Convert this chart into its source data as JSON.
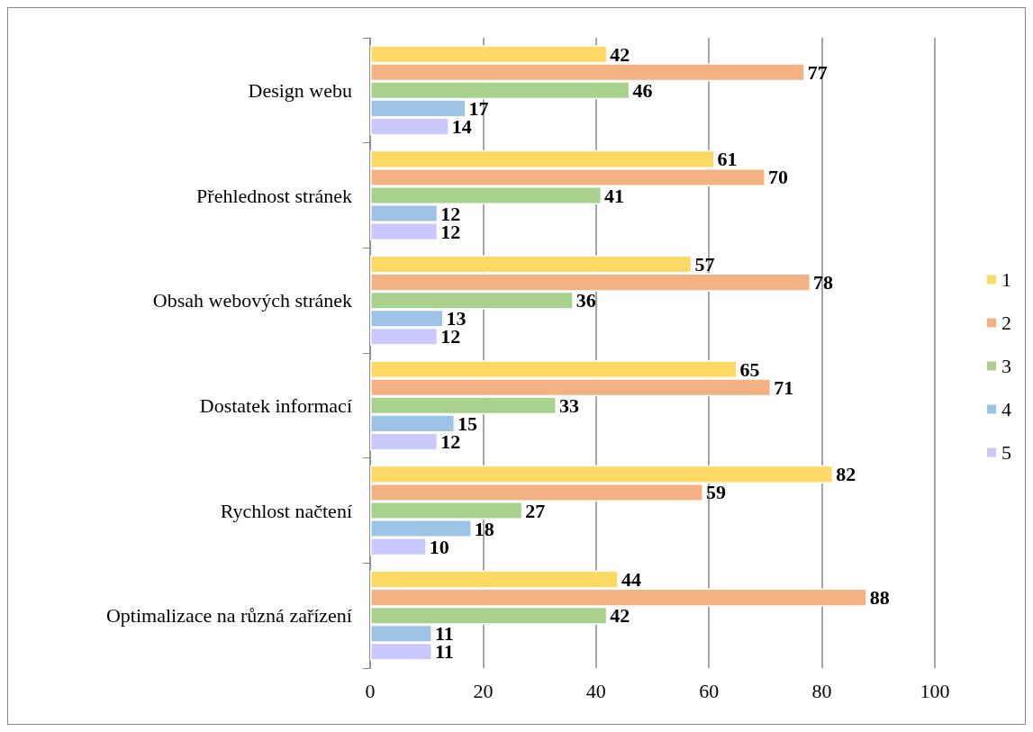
{
  "chart_data": {
    "type": "bar",
    "orientation": "horizontal",
    "categories": [
      "Design webu",
      "Přehlednost stránek",
      "Obsah webových stránek",
      "Dostatek informací",
      "Rychlost načtení",
      "Optimalizace na různá zařízení"
    ],
    "series": [
      {
        "name": "1",
        "color": "#ffd966",
        "values": [
          42,
          61,
          57,
          65,
          82,
          44
        ]
      },
      {
        "name": "2",
        "color": "#f4b183",
        "values": [
          77,
          70,
          78,
          71,
          59,
          88
        ]
      },
      {
        "name": "3",
        "color": "#a9d18e",
        "values": [
          46,
          41,
          36,
          33,
          27,
          42
        ]
      },
      {
        "name": "4",
        "color": "#9dc3e6",
        "values": [
          17,
          12,
          13,
          15,
          18,
          11
        ]
      },
      {
        "name": "5",
        "color": "#c9c9ff",
        "values": [
          14,
          12,
          12,
          12,
          10,
          11
        ]
      }
    ],
    "xlim": [
      0,
      100
    ],
    "xticks": [
      0,
      20,
      40,
      60,
      80,
      100
    ],
    "grid": "x",
    "legend": "right",
    "data_labels": true
  }
}
